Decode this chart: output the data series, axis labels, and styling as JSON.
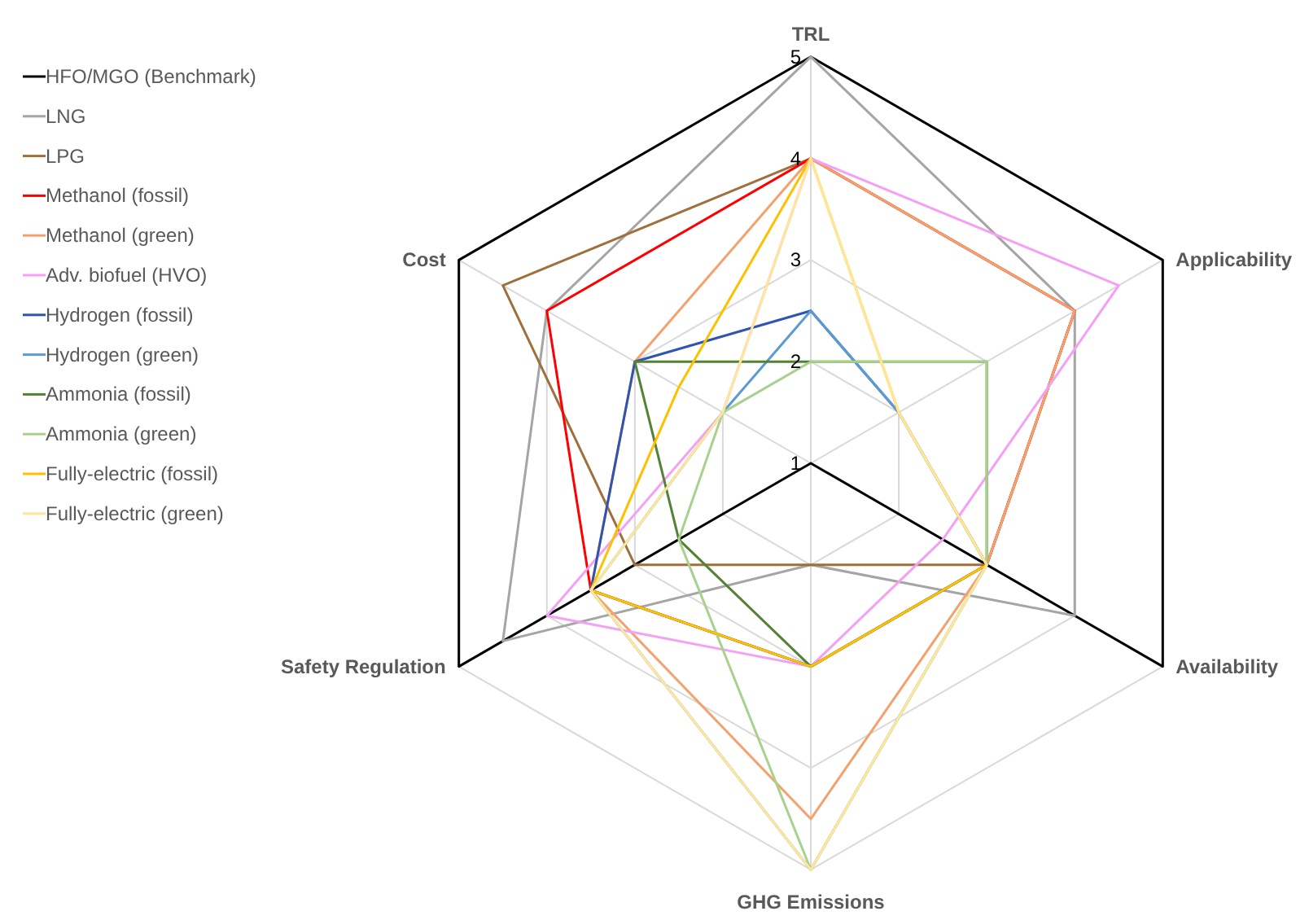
{
  "chart_data": {
    "type": "radar",
    "categories": [
      "TRL",
      "Applicability",
      "Availability",
      "GHG Emissions",
      "Safety Regulation",
      "Cost"
    ],
    "ylim": [
      1,
      5
    ],
    "yticks": [
      1,
      2,
      3,
      4,
      5
    ],
    "grid": true,
    "legend": "left",
    "series": [
      {
        "name": "HFO/MGO (Benchmark)",
        "color": "#000000",
        "values": [
          5,
          5,
          5,
          1,
          5,
          5
        ]
      },
      {
        "name": "LNG",
        "color": "#a5a5a5",
        "values": [
          5,
          4,
          4,
          2,
          4.5,
          4
        ]
      },
      {
        "name": "LPG",
        "color": "#a0703c",
        "values": [
          4,
          4,
          3,
          2,
          3,
          4.5
        ]
      },
      {
        "name": "Methanol (fossil)",
        "color": "#ff0000",
        "values": [
          4,
          4,
          3,
          3,
          3.5,
          4
        ]
      },
      {
        "name": "Methanol (green)",
        "color": "#f4a16e",
        "values": [
          4,
          4,
          3,
          4.5,
          3.5,
          3
        ]
      },
      {
        "name": "Adv. biofuel (HVO)",
        "color": "#f4a0f4",
        "values": [
          4,
          4.5,
          2.5,
          3,
          4,
          2
        ]
      },
      {
        "name": "Hydrogen (fossil)",
        "color": "#2f54b4",
        "values": [
          2.5,
          2,
          3,
          3,
          3.5,
          3
        ]
      },
      {
        "name": "Hydrogen (green)",
        "color": "#5b9bd5",
        "values": [
          2.5,
          2,
          3,
          5,
          3.5,
          2
        ]
      },
      {
        "name": "Ammonia (fossil)",
        "color": "#548235",
        "values": [
          2,
          3,
          3,
          3,
          2.5,
          3
        ]
      },
      {
        "name": "Ammonia (green)",
        "color": "#a9d18e",
        "values": [
          2,
          3,
          3,
          5,
          2.5,
          2
        ]
      },
      {
        "name": "Fully-electric (fossil)",
        "color": "#ffc000",
        "values": [
          4,
          2,
          3,
          3,
          3.5,
          2.5
        ]
      },
      {
        "name": "Fully-electric (green)",
        "color": "#ffe699",
        "values": [
          4,
          2,
          3,
          5,
          3.5,
          2
        ]
      }
    ]
  }
}
